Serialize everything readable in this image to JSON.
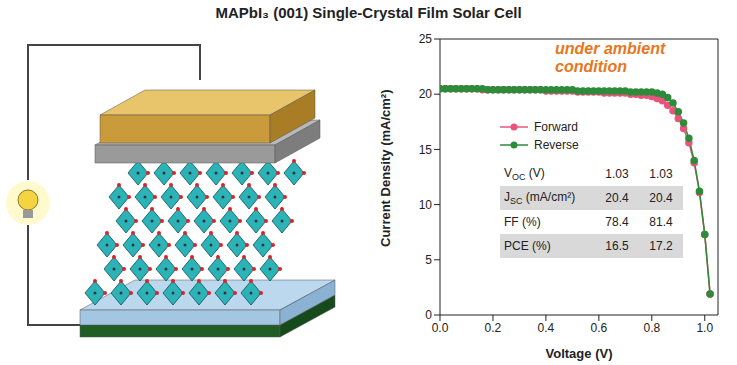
{
  "chart_data": {
    "type": "line",
    "title": "MAPbI₃ (001) Single-Crystal Film Solar Cell",
    "annotation": "under ambient condition",
    "x_label": "Voltage (V)",
    "y_label": "Current Density (mA/cm²)",
    "x": [
      0,
      0.02,
      0.04,
      0.06,
      0.08,
      0.1,
      0.12,
      0.14,
      0.16,
      0.18,
      0.2,
      0.22,
      0.24,
      0.26,
      0.28,
      0.3,
      0.32,
      0.34,
      0.36,
      0.38,
      0.4,
      0.42,
      0.44,
      0.46,
      0.48,
      0.5,
      0.52,
      0.54,
      0.56,
      0.58,
      0.6,
      0.62,
      0.64,
      0.66,
      0.68,
      0.7,
      0.72,
      0.74,
      0.76,
      0.78,
      0.8,
      0.82,
      0.84,
      0.86,
      0.88,
      0.9,
      0.92,
      0.94,
      0.96,
      0.98,
      1.0,
      1.02
    ],
    "series": [
      {
        "name": "Forward",
        "color": "#e8547c",
        "marker": "circle",
        "values": [
          20.5,
          20.5,
          20.5,
          20.5,
          20.5,
          20.5,
          20.5,
          20.5,
          20.4,
          20.4,
          20.4,
          20.4,
          20.4,
          20.4,
          20.4,
          20.4,
          20.4,
          20.4,
          20.4,
          20.4,
          20.3,
          20.3,
          20.3,
          20.3,
          20.3,
          20.3,
          20.2,
          20.2,
          20.2,
          20.2,
          20.2,
          20.1,
          20.1,
          20.1,
          20.1,
          20.1,
          20.0,
          20.0,
          19.9,
          19.9,
          19.8,
          19.6,
          19.4,
          19.0,
          18.5,
          17.8,
          16.9,
          15.6,
          13.8,
          11.1,
          7.3,
          1.9
        ]
      },
      {
        "name": "Reverse",
        "color": "#2e8b3a",
        "marker": "circle",
        "values": [
          20.5,
          20.5,
          20.5,
          20.5,
          20.5,
          20.5,
          20.5,
          20.5,
          20.5,
          20.4,
          20.4,
          20.4,
          20.4,
          20.4,
          20.4,
          20.4,
          20.4,
          20.4,
          20.4,
          20.4,
          20.4,
          20.4,
          20.4,
          20.4,
          20.4,
          20.4,
          20.3,
          20.3,
          20.3,
          20.3,
          20.3,
          20.3,
          20.3,
          20.3,
          20.3,
          20.3,
          20.2,
          20.2,
          20.2,
          20.2,
          20.2,
          20.1,
          20.0,
          19.7,
          19.2,
          18.4,
          17.4,
          16.0,
          14.0,
          11.2,
          7.3,
          1.9
        ]
      }
    ],
    "xlim": [
      0,
      1.05
    ],
    "xticks": [
      {
        "value": 0,
        "label": "0.0"
      },
      0.2,
      0.4,
      0.6,
      0.8,
      {
        "value": 1,
        "label": "1.0"
      }
    ],
    "ylim": [
      0,
      25
    ],
    "yticks": [
      0,
      5,
      10,
      15,
      20,
      25
    ],
    "grid": false
  },
  "table": {
    "rows": [
      {
        "label": "V",
        "sub": "OC",
        "unit": "(V)",
        "values": [
          1.03,
          1.03
        ]
      },
      {
        "label": "J",
        "sub": "SC",
        "unit": "(mA/cm²)",
        "values": [
          20.4,
          20.4
        ]
      },
      {
        "label": "FF",
        "sub": "",
        "unit": "(%)",
        "values": [
          78.4,
          81.4
        ]
      },
      {
        "label": "PCE",
        "sub": "",
        "unit": "(%)",
        "values": [
          16.5,
          17.2
        ]
      }
    ]
  }
}
